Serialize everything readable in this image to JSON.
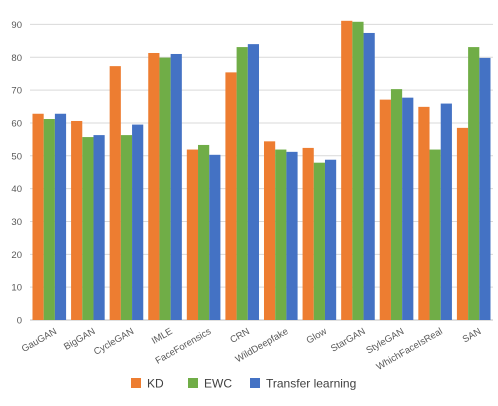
{
  "chart_data": {
    "type": "bar",
    "title": "",
    "xlabel": "",
    "ylabel": "",
    "ylim": [
      0,
      95
    ],
    "yticks": [
      0,
      10,
      20,
      30,
      40,
      50,
      60,
      70,
      80,
      90
    ],
    "grid": true,
    "legend_position": "bottom",
    "categories": [
      "GauGAN",
      "BigGAN",
      "CycleGAN",
      "IMLE",
      "FaceForensics",
      "CRN",
      "WildDeepfake",
      "Glow",
      "StarGAN",
      "StyleGAN",
      "WhichFaceIsReal",
      "SAN"
    ],
    "series": [
      {
        "name": "KD",
        "color": "#ED7D31",
        "values": [
          62.8,
          60.6,
          77.3,
          81.3,
          51.9,
          75.4,
          54.4,
          52.4,
          91.1,
          67.1,
          64.9,
          58.5
        ]
      },
      {
        "name": "EWC",
        "color": "#70AD47",
        "values": [
          61.2,
          55.7,
          56.3,
          79.9,
          53.3,
          83.1,
          51.9,
          47.9,
          90.8,
          70.3,
          51.9,
          83.1
        ]
      },
      {
        "name": "Transfer learning",
        "color": "#4472C4",
        "values": [
          62.8,
          56.3,
          59.5,
          81.0,
          50.3,
          84.0,
          51.2,
          48.8,
          87.4,
          67.7,
          65.9,
          79.8
        ]
      }
    ]
  }
}
